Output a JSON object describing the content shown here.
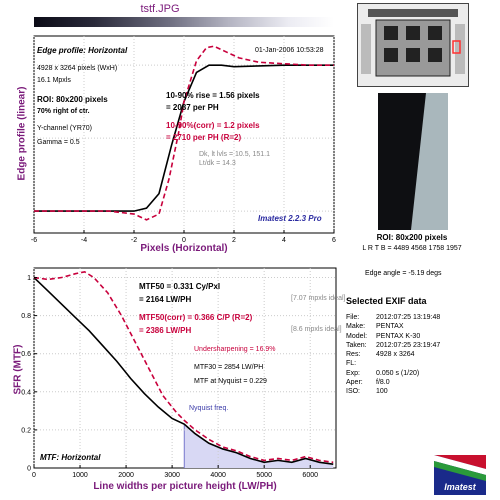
{
  "file_title": "tstf.JPG",
  "edge_panel": {
    "title": "Edge profile: Horizontal",
    "timestamp": "01-Jan-2006 10:53:28",
    "info": [
      "4928 x 3264 pixels (WxH)",
      "16.1 Mpxls"
    ],
    "roi": "ROI: 80x200 pixels",
    "roi_pos": "70% right of ctr.",
    "channel": "Y-channel (YR70)",
    "gamma": "Gamma = 0.5",
    "rise_line1": "10-90% rise = 1.56 pixels",
    "rise_line2": "= 2087 per PH",
    "corr_line1": "10-90%(corr) = 1.2 pixels",
    "corr_line2": "= 2710 per PH  (R=2)",
    "dk_line1": "Dk, lt lvls = 10.5, 151.1",
    "dk_line2": "Lt/dk = 14.3",
    "brand": "Imatest 2.2.3 Pro",
    "xlabel": "Pixels (Horizontal)",
    "ylabel": "Edge profile (linear)",
    "xticks": [
      "-6",
      "-4",
      "-2",
      "0",
      "2",
      "4",
      "6"
    ]
  },
  "roi_panel": {
    "label": "ROI: 80x200 pixels",
    "lrtb": "L R T B = 4489 4568  1758 1957",
    "edge_angle": "Edge angle = -5.19 degs"
  },
  "mtf_panel": {
    "title": "MTF: Horizontal",
    "mtf50_line1": "MTF50 = 0.331 Cy/Pxl",
    "mtf50_line2": "= 2164 LW/PH",
    "mtf50_ideal": "[7.07 mpxls ideal]",
    "corr_line1": "MTF50(corr) = 0.366 C/P  (R=2)",
    "corr_line2": "= 2386 LW/PH",
    "corr_ideal": "[8.6 mpxls ideal]",
    "undersharp": "Undersharpening = 16.9%",
    "mtf30": "MTF30 = 2854 LW/PH",
    "nyq_mtf": "MTF at Nyquist = 0.229",
    "nyquist": "Nyquist freq.",
    "xlabel": "Line widths per picture height (LW/PH)",
    "ylabel": "SFR (MTF)",
    "xticks": [
      "0",
      "1000",
      "2000",
      "3000",
      "4000",
      "5000",
      "6000"
    ],
    "yticks": [
      "0",
      "0.2",
      "0.4",
      "0.6",
      "0.8",
      "1"
    ]
  },
  "exif": {
    "header": "Selected EXIF data",
    "rows": [
      {
        "k": "File:",
        "v": "2012:07:25 13:19:48"
      },
      {
        "k": "Make:",
        "v": "PENTAX"
      },
      {
        "k": "Model:",
        "v": "PENTAX K-30"
      },
      {
        "k": "Taken:",
        "v": "2012:07:25 23:19:47"
      },
      {
        "k": "Res:",
        "v": "4928 x 3264"
      },
      {
        "k": "FL:",
        "v": ""
      },
      {
        "k": "Exp:",
        "v": "0.050 s (1/20)"
      },
      {
        "k": "Aper:",
        "v": "f/8.0"
      },
      {
        "k": "ISO:",
        "v": "100"
      }
    ]
  },
  "logo_text": "Imatest",
  "colors": {
    "accent": "#7a1a7a",
    "corrected": "#c8003c",
    "nyquist_fill": "#d8d8f4",
    "nyquist_text": "#3a3aa8"
  },
  "chart_data": [
    {
      "type": "line",
      "title": "Edge profile: Horizontal",
      "xlabel": "Pixels (Horizontal)",
      "ylabel": "Edge profile (linear)",
      "xlim": [
        -6,
        6
      ],
      "ylim": [
        -0.15,
        1.2
      ],
      "series": [
        {
          "style": "solid-black",
          "x": [
            -6,
            -4,
            -3,
            -2,
            -1.5,
            -1,
            -0.5,
            0,
            0.5,
            1,
            1.5,
            2,
            3,
            4,
            5,
            6
          ],
          "y": [
            0.0,
            0.0,
            0.0,
            0.0,
            0.02,
            0.12,
            0.45,
            0.75,
            0.95,
            1.0,
            1.0,
            0.99,
            0.995,
            1.0,
            1.0,
            1.0
          ]
        },
        {
          "style": "dashed-red",
          "x": [
            -6,
            -4,
            -3,
            -2,
            -1.5,
            -1,
            -0.6,
            -0.2,
            0,
            0.5,
            0.9,
            1.2,
            1.7,
            2.2,
            3,
            4,
            5,
            6
          ],
          "y": [
            0.0,
            0.0,
            0.0,
            -0.02,
            -0.06,
            -0.02,
            0.22,
            0.55,
            0.75,
            1.03,
            1.12,
            1.13,
            1.09,
            1.05,
            1.02,
            1.01,
            1.0,
            1.0
          ]
        }
      ]
    },
    {
      "type": "line",
      "title": "MTF: Horizontal",
      "xlabel": "Line widths per picture height (LW/PH)",
      "ylabel": "SFR (MTF)",
      "xlim": [
        0,
        6560
      ],
      "ylim": [
        0,
        1.05
      ],
      "nyquist": 3264,
      "series": [
        {
          "style": "solid-black",
          "x": [
            0,
            300,
            600,
            900,
            1200,
            1500,
            1800,
            2100,
            2400,
            2700,
            3000,
            3264,
            3500,
            3800,
            4100,
            4400,
            4700,
            5000,
            5300,
            5600,
            5900,
            6200,
            6500
          ],
          "y": [
            1.0,
            0.93,
            0.86,
            0.79,
            0.72,
            0.64,
            0.56,
            0.47,
            0.39,
            0.32,
            0.26,
            0.23,
            0.18,
            0.13,
            0.1,
            0.08,
            0.05,
            0.03,
            0.04,
            0.03,
            0.05,
            0.03,
            0.02
          ]
        },
        {
          "style": "dashed-red",
          "x": [
            0,
            300,
            600,
            900,
            1100,
            1300,
            1600,
            1900,
            2200,
            2500,
            2800,
            3100,
            3264,
            3500,
            3800,
            4100,
            4400,
            4700,
            5000,
            5300,
            5600,
            5900,
            6200,
            6500
          ],
          "y": [
            1.0,
            0.99,
            1.0,
            1.02,
            1.03,
            1.0,
            0.92,
            0.8,
            0.66,
            0.52,
            0.38,
            0.29,
            0.25,
            0.2,
            0.15,
            0.11,
            0.09,
            0.06,
            0.04,
            0.05,
            0.04,
            0.06,
            0.04,
            0.03
          ]
        }
      ]
    }
  ]
}
